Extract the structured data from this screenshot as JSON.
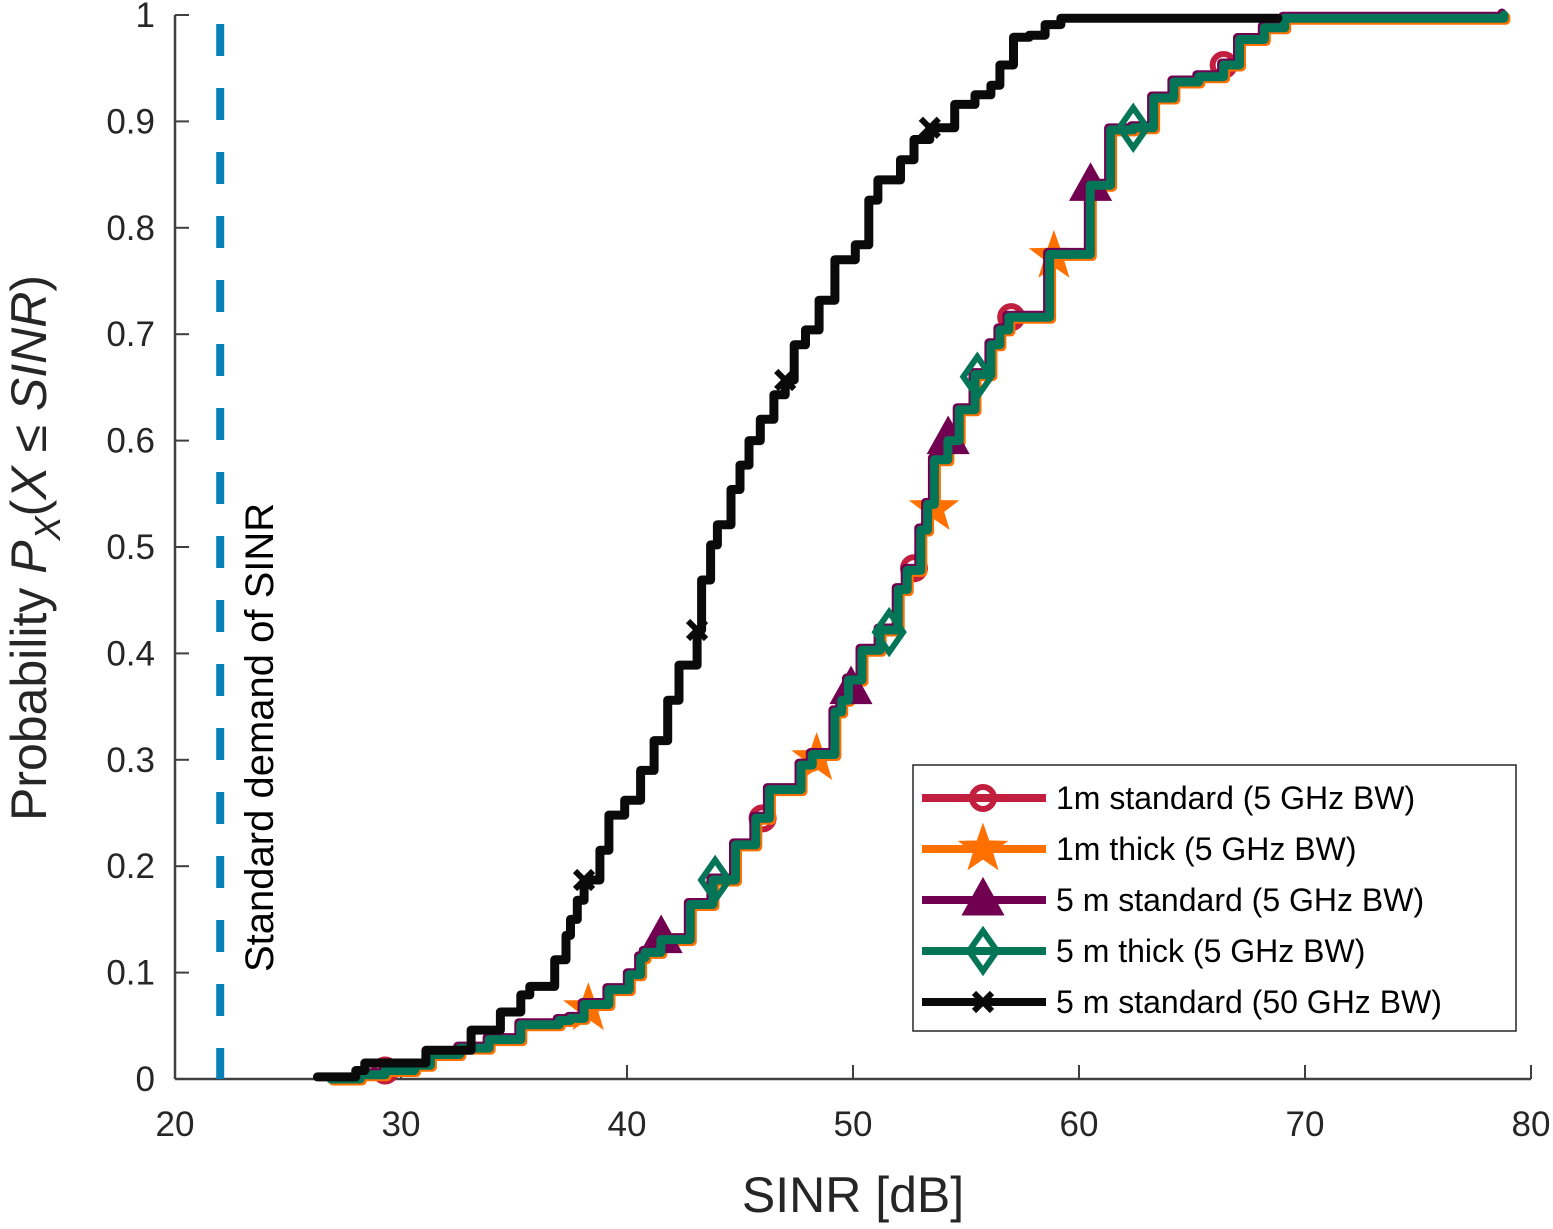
{
  "chart_data": {
    "type": "line",
    "subtype": "empirical-cdf",
    "title": "",
    "xlabel": "SINR [dB]",
    "ylabel_parts": {
      "prefix": "Probability ",
      "P": "P",
      "sub": "X",
      "open": "(",
      "X": "X",
      "le": " ≤ ",
      "SINR": "SINR",
      "close": ")"
    },
    "ylabel": "Probability P_X(X ≤ SINR)",
    "xlim": [
      20,
      80
    ],
    "ylim": [
      0,
      1
    ],
    "xticks": [
      20,
      30,
      40,
      50,
      60,
      70,
      80
    ],
    "xtick_labels": [
      "20",
      "30",
      "40",
      "50",
      "60",
      "70",
      "80"
    ],
    "yticks": [
      0,
      0.1,
      0.2,
      0.3,
      0.4,
      0.5,
      0.6,
      0.7,
      0.8,
      0.9,
      1
    ],
    "ytick_labels": [
      "0",
      "0.1",
      "0.2",
      "0.3",
      "0.4",
      "0.5",
      "0.6",
      "0.7",
      "0.8",
      "0.9",
      "1"
    ],
    "grid": false,
    "legend_position": "bottom-right",
    "annotation": {
      "text": "Standard demand of SINR",
      "x": 22,
      "orientation": "vertical",
      "line_style": "dashed",
      "color": "#0780B8"
    },
    "series": [
      {
        "name": "1m standard (5 GHz BW)",
        "color": "#C21E3E",
        "marker": "circle",
        "x": [
          26.9,
          28.2,
          29.3,
          30.6,
          31.3,
          32.6,
          33.9,
          35.3,
          37.0,
          37.5,
          38.1,
          39.2,
          40.1,
          40.6,
          40.8,
          41.5,
          42.8,
          43.8,
          44.8,
          45.7,
          46.3,
          47.7,
          48.2,
          49.2,
          49.5,
          49.8,
          50.4,
          51.2,
          52.0,
          52.4,
          53.0,
          53.3,
          53.6,
          54.2,
          54.7,
          55.4,
          56.1,
          56.5,
          56.9,
          58.7,
          60.5,
          61.4,
          62.4,
          63.3,
          64.2,
          65.3,
          66.4,
          67.1,
          68.2,
          69.1,
          78.8
        ],
        "y": [
          0.0,
          0.004,
          0.008,
          0.013,
          0.023,
          0.029,
          0.037,
          0.051,
          0.055,
          0.057,
          0.07,
          0.084,
          0.098,
          0.114,
          0.119,
          0.131,
          0.164,
          0.187,
          0.22,
          0.245,
          0.272,
          0.295,
          0.305,
          0.345,
          0.356,
          0.375,
          0.403,
          0.422,
          0.46,
          0.478,
          0.516,
          0.54,
          0.582,
          0.6,
          0.629,
          0.662,
          0.69,
          0.704,
          0.716,
          0.775,
          0.84,
          0.892,
          0.894,
          0.922,
          0.937,
          0.942,
          0.953,
          0.977,
          0.988,
          0.997,
          1.0
        ],
        "marker_points": [
          [
            29.3,
            0.008
          ],
          [
            46.0,
            0.245
          ],
          [
            52.7,
            0.48
          ],
          [
            57.0,
            0.716
          ],
          [
            66.4,
            0.953
          ]
        ]
      },
      {
        "name": "1m thick (5 GHz BW)",
        "color": "#FF7000",
        "marker": "star",
        "x": [
          26.9,
          28.2,
          29.3,
          30.6,
          31.3,
          32.6,
          33.9,
          35.3,
          37.0,
          37.5,
          38.1,
          39.2,
          40.1,
          40.6,
          40.8,
          41.5,
          42.8,
          43.8,
          44.8,
          45.7,
          46.3,
          47.7,
          48.2,
          49.2,
          49.5,
          49.8,
          50.4,
          51.2,
          52.0,
          52.4,
          53.0,
          53.3,
          53.6,
          54.2,
          54.7,
          55.4,
          56.1,
          56.5,
          56.9,
          58.7,
          60.5,
          61.4,
          62.4,
          63.3,
          64.2,
          65.3,
          66.4,
          67.1,
          68.2,
          69.1,
          78.8
        ],
        "y": [
          0.0,
          0.004,
          0.008,
          0.013,
          0.023,
          0.029,
          0.037,
          0.051,
          0.055,
          0.057,
          0.07,
          0.084,
          0.098,
          0.114,
          0.119,
          0.131,
          0.164,
          0.187,
          0.22,
          0.245,
          0.272,
          0.295,
          0.305,
          0.345,
          0.356,
          0.375,
          0.403,
          0.422,
          0.46,
          0.478,
          0.516,
          0.54,
          0.582,
          0.6,
          0.629,
          0.662,
          0.69,
          0.704,
          0.716,
          0.775,
          0.84,
          0.892,
          0.894,
          0.922,
          0.937,
          0.942,
          0.953,
          0.977,
          0.988,
          0.997,
          1.0
        ],
        "marker_points": [
          [
            38.2,
            0.068
          ],
          [
            48.3,
            0.303
          ],
          [
            53.5,
            0.538
          ],
          [
            58.8,
            0.775
          ]
        ]
      },
      {
        "name": "5 m standard (5 GHz BW)",
        "color": "#720050",
        "marker": "triangle",
        "x": [
          26.9,
          28.2,
          29.3,
          30.6,
          31.3,
          32.6,
          33.9,
          35.3,
          37.0,
          37.5,
          38.1,
          39.2,
          40.1,
          40.6,
          40.8,
          41.5,
          42.8,
          43.8,
          44.8,
          45.7,
          46.3,
          47.7,
          48.2,
          49.2,
          49.5,
          49.8,
          50.4,
          51.2,
          52.0,
          52.4,
          53.0,
          53.3,
          53.6,
          54.2,
          54.7,
          55.4,
          56.1,
          56.5,
          56.9,
          58.7,
          60.5,
          61.4,
          62.4,
          63.3,
          64.2,
          65.3,
          66.4,
          67.1,
          68.2,
          69.1,
          78.8
        ],
        "y": [
          0.0,
          0.004,
          0.008,
          0.013,
          0.023,
          0.029,
          0.037,
          0.051,
          0.055,
          0.057,
          0.07,
          0.084,
          0.098,
          0.114,
          0.119,
          0.131,
          0.164,
          0.187,
          0.22,
          0.245,
          0.272,
          0.295,
          0.305,
          0.345,
          0.356,
          0.375,
          0.403,
          0.422,
          0.46,
          0.478,
          0.516,
          0.54,
          0.582,
          0.6,
          0.629,
          0.662,
          0.69,
          0.704,
          0.716,
          0.775,
          0.84,
          0.892,
          0.894,
          0.922,
          0.937,
          0.942,
          0.953,
          0.977,
          0.988,
          0.997,
          1.0
        ],
        "marker_points": [
          [
            41.6,
            0.131
          ],
          [
            50.0,
            0.365
          ],
          [
            54.3,
            0.6
          ],
          [
            60.6,
            0.838
          ]
        ]
      },
      {
        "name": "5 m thick (5 GHz BW)",
        "color": "#047657",
        "marker": "diamond",
        "x": [
          26.9,
          28.2,
          29.3,
          30.6,
          31.3,
          32.6,
          33.9,
          35.3,
          37.0,
          37.5,
          38.1,
          39.2,
          40.1,
          40.6,
          40.8,
          41.5,
          42.8,
          43.8,
          44.8,
          45.7,
          46.3,
          47.7,
          48.2,
          49.2,
          49.5,
          49.8,
          50.4,
          51.2,
          52.0,
          52.4,
          53.0,
          53.3,
          53.6,
          54.2,
          54.7,
          55.4,
          56.1,
          56.5,
          56.9,
          58.7,
          60.5,
          61.4,
          62.4,
          63.3,
          64.2,
          65.3,
          66.4,
          67.1,
          68.2,
          69.1,
          78.8
        ],
        "y": [
          0.0,
          0.004,
          0.008,
          0.013,
          0.023,
          0.029,
          0.037,
          0.051,
          0.055,
          0.057,
          0.07,
          0.084,
          0.098,
          0.114,
          0.119,
          0.131,
          0.164,
          0.187,
          0.22,
          0.245,
          0.272,
          0.295,
          0.305,
          0.345,
          0.356,
          0.375,
          0.403,
          0.422,
          0.46,
          0.478,
          0.516,
          0.54,
          0.582,
          0.6,
          0.629,
          0.662,
          0.69,
          0.704,
          0.716,
          0.775,
          0.84,
          0.892,
          0.894,
          0.922,
          0.937,
          0.942,
          0.953,
          0.977,
          0.988,
          0.997,
          1.0
        ],
        "marker_points": [
          [
            43.9,
            0.187
          ],
          [
            51.6,
            0.42
          ],
          [
            55.5,
            0.66
          ],
          [
            62.4,
            0.894
          ]
        ]
      },
      {
        "name": "5 m standard (50 GHz BW)",
        "color": "#0A0A0A",
        "marker": "x",
        "x": [
          26.3,
          28.0,
          28.4,
          31.1,
          33.1,
          34.4,
          35.3,
          35.7,
          36.8,
          37.3,
          37.5,
          37.8,
          38.1,
          38.8,
          39.2,
          39.9,
          40.6,
          41.2,
          41.8,
          42.3,
          43.1,
          43.3,
          43.7,
          44.0,
          44.6,
          45.0,
          45.4,
          45.9,
          46.5,
          47.0,
          47.4,
          47.9,
          48.5,
          49.2,
          50.1,
          50.7,
          51.1,
          52.1,
          52.7,
          53.4,
          54.5,
          55.4,
          56.1,
          56.5,
          57.1,
          57.8,
          58.5,
          59.2,
          68.8
        ],
        "y": [
          0.002,
          0.008,
          0.015,
          0.027,
          0.046,
          0.063,
          0.079,
          0.087,
          0.112,
          0.135,
          0.15,
          0.168,
          0.187,
          0.215,
          0.248,
          0.262,
          0.29,
          0.318,
          0.356,
          0.389,
          0.422,
          0.469,
          0.502,
          0.521,
          0.554,
          0.577,
          0.6,
          0.62,
          0.643,
          0.657,
          0.69,
          0.704,
          0.732,
          0.77,
          0.784,
          0.826,
          0.845,
          0.864,
          0.883,
          0.894,
          0.916,
          0.925,
          0.934,
          0.953,
          0.979,
          0.981,
          0.991,
          0.997,
          0.997
        ],
        "marker_points": [
          [
            38.1,
            0.187
          ],
          [
            43.1,
            0.422
          ],
          [
            47.0,
            0.657
          ],
          [
            53.4,
            0.894
          ]
        ]
      }
    ]
  }
}
